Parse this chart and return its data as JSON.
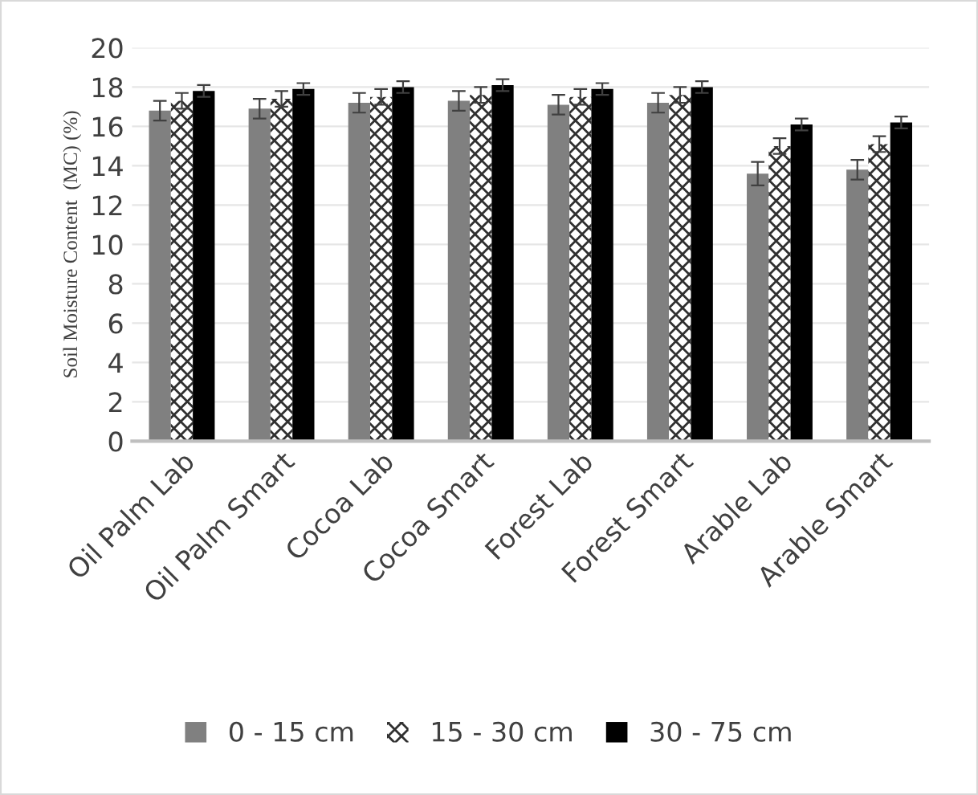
{
  "chart_data": {
    "type": "bar",
    "ylabel": "Soil Moisture Content  (MC) (%)",
    "categories": [
      "Oil Palm Lab",
      "Oil Palm Smart",
      "Cocoa Lab",
      "Cocoa Smart",
      "Forest Lab",
      "Forest Smart",
      "Arable Lab",
      "Arable Smart"
    ],
    "series": [
      {
        "name": "0 - 15 cm",
        "color": "#808080",
        "values": [
          16.8,
          16.9,
          17.2,
          17.3,
          17.1,
          17.2,
          13.6,
          13.8
        ],
        "errors": [
          0.5,
          0.5,
          0.5,
          0.5,
          0.5,
          0.5,
          0.6,
          0.5
        ]
      },
      {
        "name": "15 - 30 cm",
        "color": "#303030",
        "values": [
          17.3,
          17.4,
          17.5,
          17.6,
          17.5,
          17.6,
          15.0,
          15.1
        ],
        "errors": [
          0.4,
          0.4,
          0.4,
          0.4,
          0.4,
          0.4,
          0.4,
          0.4
        ]
      },
      {
        "name": "30 - 75 cm",
        "color": "#000000",
        "values": [
          17.8,
          17.9,
          18.0,
          18.1,
          17.9,
          18.0,
          16.1,
          16.2
        ],
        "errors": [
          0.3,
          0.3,
          0.3,
          0.3,
          0.3,
          0.3,
          0.3,
          0.3
        ]
      }
    ],
    "ylim": [
      0,
      20
    ],
    "yticks": [
      0,
      2,
      4,
      6,
      8,
      10,
      12,
      14,
      16,
      18,
      20
    ],
    "grid": "y",
    "legend": "bottom"
  }
}
